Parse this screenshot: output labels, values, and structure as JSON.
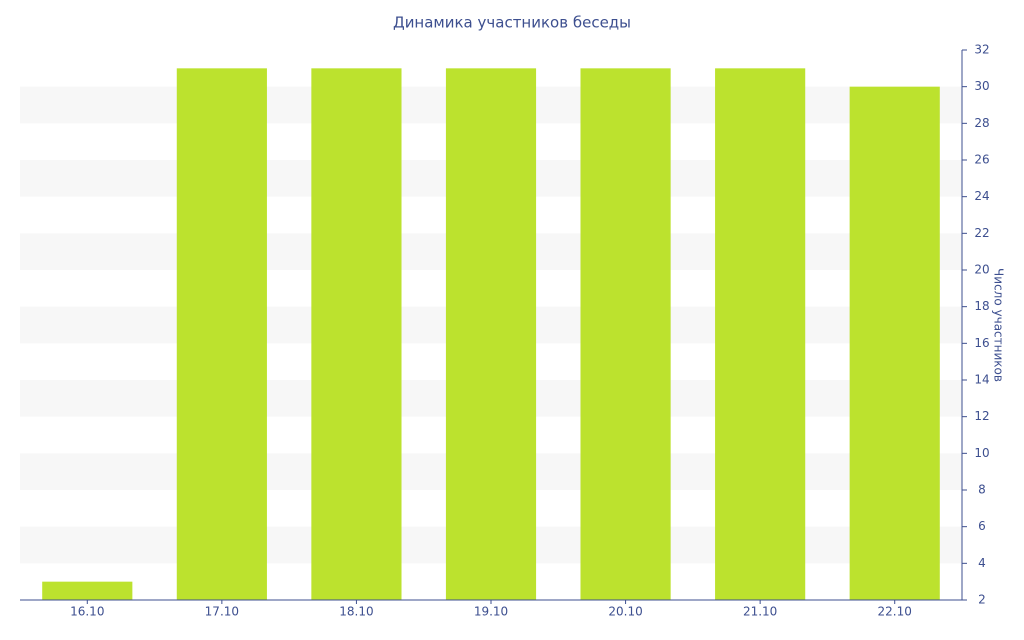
{
  "chart_data": {
    "type": "bar",
    "title": "Динамика участников беседы",
    "y_label": "Число участников",
    "categories": [
      "16.10",
      "17.10",
      "18.10",
      "19.10",
      "20.10",
      "21.10",
      "22.10"
    ],
    "values": [
      3,
      31,
      31,
      31,
      31,
      31,
      30
    ],
    "color": "#bce22e",
    "ylim": [
      2,
      32
    ],
    "yticks": [
      2,
      4,
      6,
      8,
      10,
      12,
      14,
      16,
      18,
      20,
      22,
      24,
      26,
      28,
      30,
      32
    ],
    "grid": true
  }
}
